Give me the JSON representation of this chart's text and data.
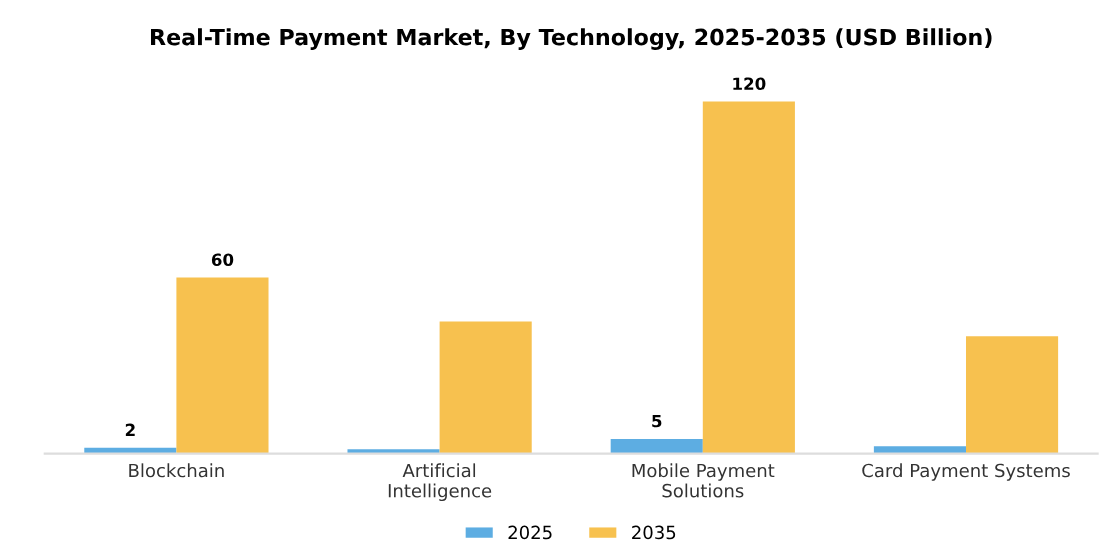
{
  "chart_data": {
    "type": "bar",
    "title": "Real-Time Payment Market, By Technology, 2025-2035 (USD Billion)",
    "categories": [
      "Blockchain",
      "Artificial\nIntelligence",
      "Mobile Payment\nSolutions",
      "Card Payment Systems"
    ],
    "series": [
      {
        "name": "2025",
        "color": "#5dade2",
        "values": [
          2,
          1.5,
          5,
          2.5
        ],
        "value_labels": [
          "2",
          null,
          "5",
          null
        ]
      },
      {
        "name": "2035",
        "color": "#f7c14f",
        "values": [
          60,
          45,
          120,
          40
        ],
        "value_labels": [
          "60",
          null,
          "120",
          null
        ]
      }
    ],
    "legend": "bottom",
    "grid": false
  }
}
